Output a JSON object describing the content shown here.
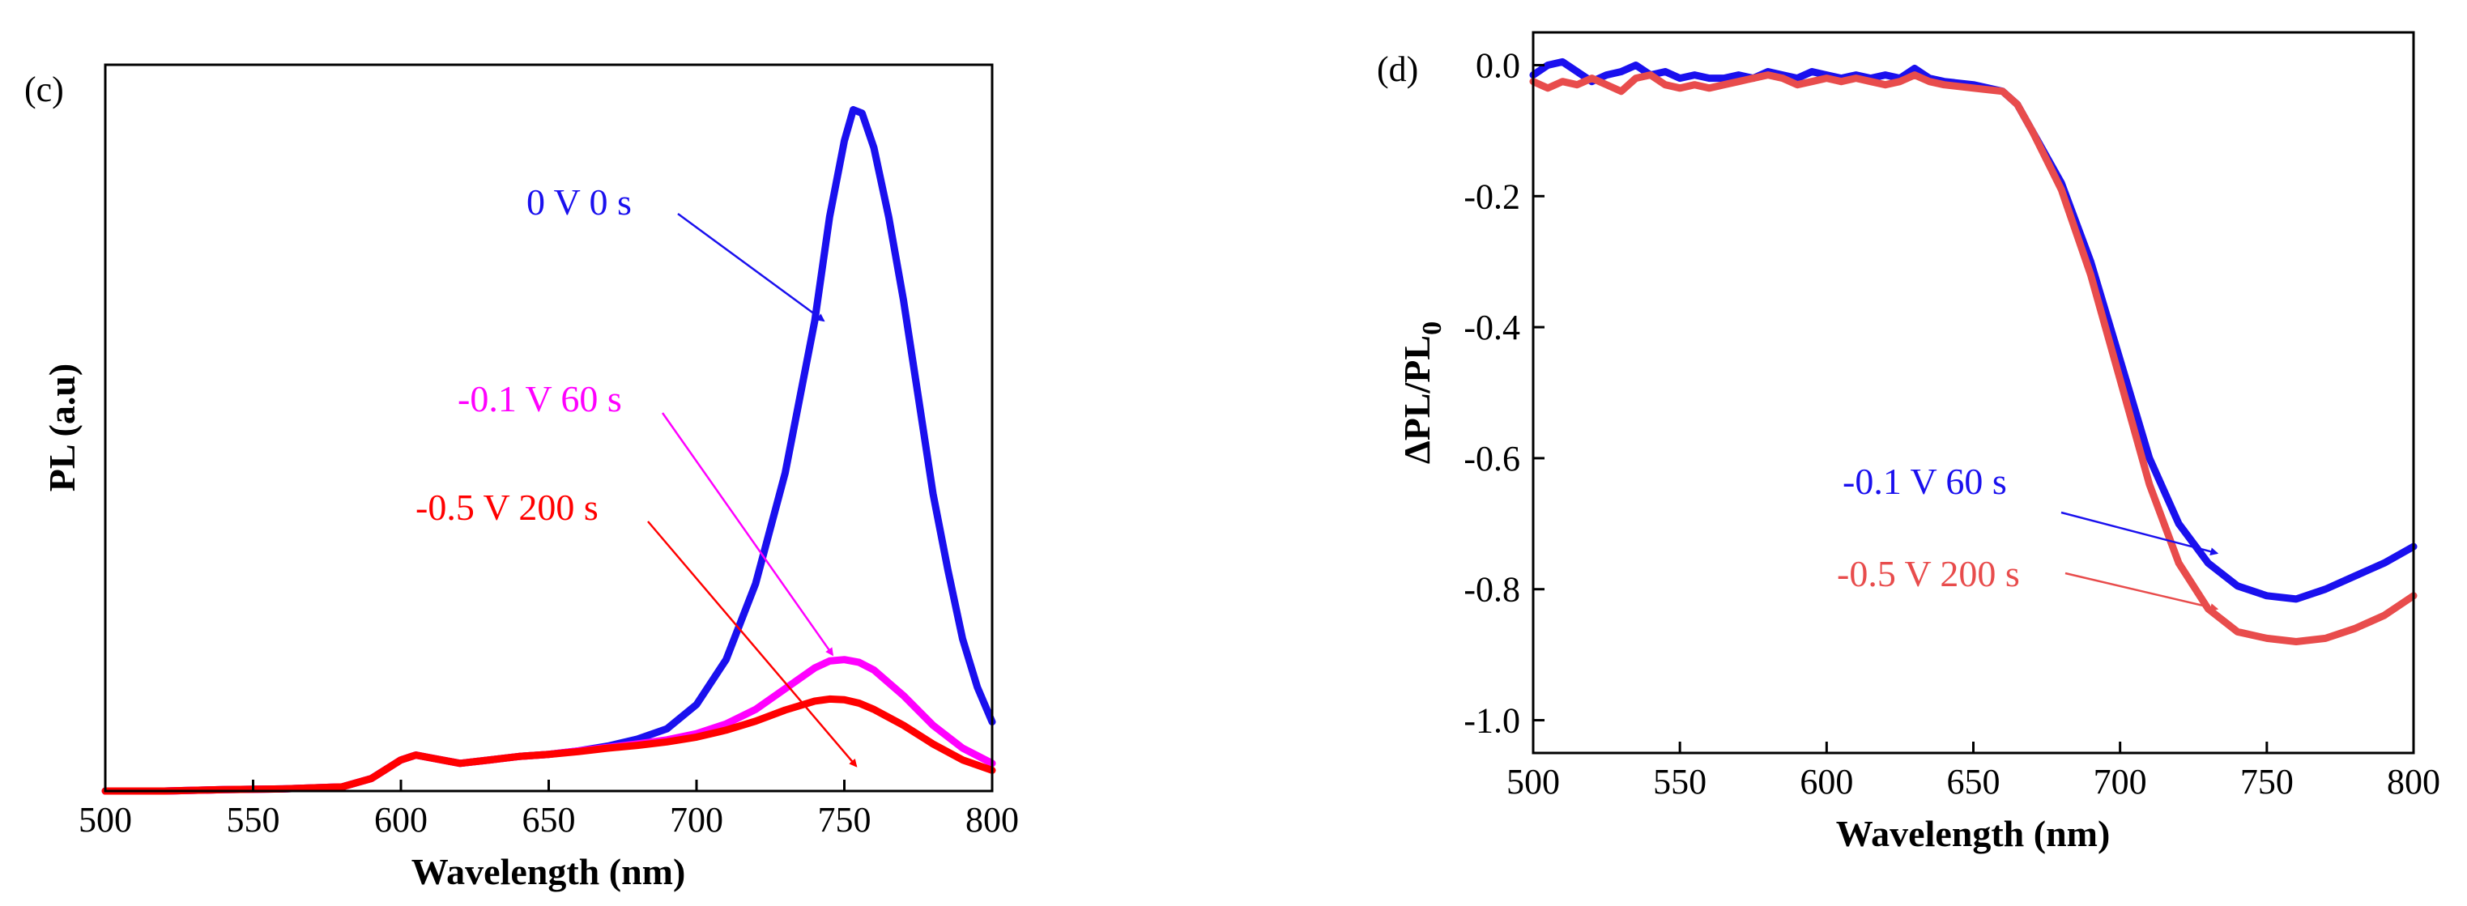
{
  "chart_data": [
    {
      "panel": "(c)",
      "type": "line",
      "xlabel": "Wavelength (nm)",
      "ylabel": "PL (a.u)",
      "xlim": [
        500,
        800
      ],
      "ylim": [
        0,
        1.05
      ],
      "xticks": [
        500,
        550,
        600,
        650,
        700,
        750,
        800
      ],
      "yticks": [],
      "grid": false,
      "series": [
        {
          "name": "0 V 0 s",
          "color": "#1a10ee",
          "x": [
            500,
            520,
            540,
            560,
            580,
            590,
            600,
            605,
            610,
            620,
            630,
            640,
            650,
            660,
            670,
            680,
            690,
            700,
            710,
            720,
            730,
            740,
            745,
            750,
            753,
            756,
            760,
            765,
            770,
            775,
            780,
            785,
            790,
            795,
            800
          ],
          "y": [
            0.0,
            0.0,
            0.002,
            0.003,
            0.006,
            0.018,
            0.045,
            0.052,
            0.048,
            0.04,
            0.045,
            0.05,
            0.053,
            0.058,
            0.065,
            0.075,
            0.09,
            0.125,
            0.19,
            0.3,
            0.46,
            0.68,
            0.83,
            0.94,
            0.985,
            0.98,
            0.93,
            0.83,
            0.71,
            0.57,
            0.43,
            0.32,
            0.22,
            0.15,
            0.1
          ]
        },
        {
          "name": "-0.1 V 60 s",
          "color": "#ff00ff",
          "x": [
            500,
            520,
            540,
            560,
            580,
            590,
            600,
            605,
            610,
            620,
            630,
            640,
            650,
            660,
            670,
            680,
            690,
            700,
            710,
            720,
            730,
            740,
            745,
            750,
            755,
            760,
            770,
            780,
            790,
            800
          ],
          "y": [
            0.0,
            0.0,
            0.002,
            0.003,
            0.006,
            0.018,
            0.045,
            0.052,
            0.048,
            0.04,
            0.045,
            0.05,
            0.053,
            0.058,
            0.063,
            0.068,
            0.074,
            0.083,
            0.097,
            0.118,
            0.148,
            0.178,
            0.188,
            0.19,
            0.186,
            0.175,
            0.138,
            0.095,
            0.062,
            0.04
          ]
        },
        {
          "name": "-0.5 V 200 s",
          "color": "#ff0000",
          "x": [
            500,
            520,
            540,
            560,
            580,
            590,
            600,
            605,
            610,
            620,
            630,
            640,
            650,
            660,
            670,
            680,
            690,
            700,
            710,
            720,
            730,
            740,
            745,
            750,
            755,
            760,
            770,
            780,
            790,
            800
          ],
          "y": [
            0.0,
            0.0,
            0.002,
            0.003,
            0.006,
            0.018,
            0.045,
            0.052,
            0.048,
            0.04,
            0.045,
            0.05,
            0.053,
            0.057,
            0.062,
            0.066,
            0.071,
            0.078,
            0.088,
            0.101,
            0.117,
            0.13,
            0.133,
            0.132,
            0.127,
            0.118,
            0.095,
            0.068,
            0.045,
            0.03
          ]
        }
      ],
      "annotations": [
        {
          "text": "0 V 0 s",
          "color": "#1a10ee",
          "arrow_to": [
            743,
            0.68
          ]
        },
        {
          "text": "-0.1 V 60 s",
          "color": "#ff00ff",
          "arrow_to": [
            746,
            0.197
          ]
        },
        {
          "text": "-0.5 V 200 s",
          "color": "#ff0000",
          "arrow_to": [
            754,
            0.036
          ]
        }
      ]
    },
    {
      "panel": "(d)",
      "type": "line",
      "xlabel": "Wavelength (nm)",
      "ylabel": "ΔPL/PL",
      "ylabel_subscript": "0",
      "xlim": [
        500,
        800
      ],
      "ylim": [
        -1.05,
        0.05
      ],
      "xticks": [
        500,
        550,
        600,
        650,
        700,
        750,
        800
      ],
      "yticks": [
        0.0,
        -0.2,
        -0.4,
        -0.6,
        -0.8,
        -1.0
      ],
      "ytick_labels": [
        "0.0",
        "-0.2",
        "-0.4",
        "-0.6",
        "-0.8",
        "-1.0"
      ],
      "grid": false,
      "series": [
        {
          "name": "-0.1 V 60 s",
          "color": "#1a10ee",
          "x": [
            500,
            505,
            510,
            515,
            520,
            525,
            530,
            535,
            540,
            545,
            550,
            555,
            560,
            565,
            570,
            575,
            580,
            585,
            590,
            595,
            600,
            605,
            610,
            615,
            620,
            625,
            630,
            635,
            640,
            650,
            660,
            665,
            670,
            680,
            690,
            700,
            710,
            720,
            730,
            740,
            750,
            760,
            770,
            780,
            790,
            800
          ],
          "y": [
            -0.015,
            0.0,
            0.005,
            -0.01,
            -0.025,
            -0.015,
            -0.01,
            0.0,
            -0.015,
            -0.01,
            -0.02,
            -0.015,
            -0.02,
            -0.02,
            -0.015,
            -0.02,
            -0.01,
            -0.015,
            -0.02,
            -0.01,
            -0.015,
            -0.02,
            -0.015,
            -0.02,
            -0.015,
            -0.02,
            -0.005,
            -0.02,
            -0.025,
            -0.03,
            -0.04,
            -0.06,
            -0.1,
            -0.18,
            -0.3,
            -0.45,
            -0.6,
            -0.7,
            -0.76,
            -0.795,
            -0.81,
            -0.815,
            -0.8,
            -0.78,
            -0.76,
            -0.735
          ]
        },
        {
          "name": "-0.5 V 200 s",
          "color": "#e84c4c",
          "x": [
            500,
            505,
            510,
            515,
            520,
            525,
            530,
            535,
            540,
            545,
            550,
            555,
            560,
            565,
            570,
            575,
            580,
            585,
            590,
            595,
            600,
            605,
            610,
            615,
            620,
            625,
            630,
            635,
            640,
            650,
            660,
            665,
            670,
            680,
            690,
            700,
            710,
            720,
            730,
            740,
            750,
            760,
            770,
            780,
            790,
            800
          ],
          "y": [
            -0.025,
            -0.035,
            -0.025,
            -0.03,
            -0.02,
            -0.03,
            -0.04,
            -0.02,
            -0.015,
            -0.03,
            -0.035,
            -0.03,
            -0.035,
            -0.03,
            -0.025,
            -0.02,
            -0.015,
            -0.02,
            -0.03,
            -0.025,
            -0.02,
            -0.025,
            -0.02,
            -0.025,
            -0.03,
            -0.025,
            -0.015,
            -0.025,
            -0.03,
            -0.035,
            -0.04,
            -0.06,
            -0.1,
            -0.19,
            -0.32,
            -0.48,
            -0.64,
            -0.76,
            -0.83,
            -0.865,
            -0.875,
            -0.88,
            -0.875,
            -0.86,
            -0.84,
            -0.81
          ]
        }
      ],
      "annotations": [
        {
          "text": "-0.1 V 60 s",
          "color": "#1a10ee",
          "arrow_to": [
            733,
            -0.745
          ]
        },
        {
          "text": "-0.5 V 200 s",
          "color": "#e84c4c",
          "arrow_to": [
            733,
            -0.83
          ]
        }
      ]
    }
  ]
}
